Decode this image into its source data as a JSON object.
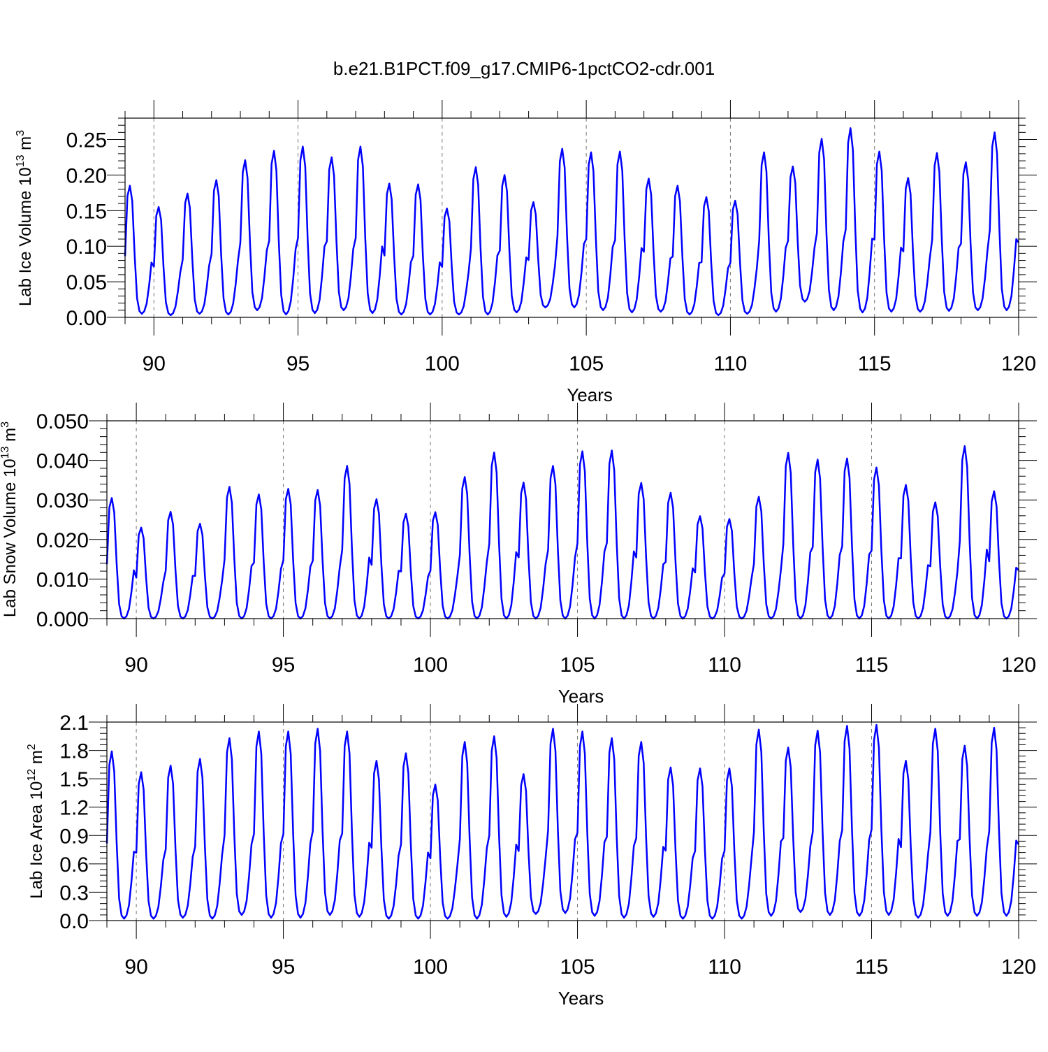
{
  "figure": {
    "title": "b.e21.B1PCT.f09_g17.CMIP6-1pctCO2-cdr.001",
    "colors": {
      "series": "#0000ff",
      "axis": "#000000",
      "grid": "#777777"
    }
  },
  "chart_data": [
    {
      "type": "line",
      "title": "b.e21.B1PCT.f09_g17.CMIP6-1pctCO2-cdr.001",
      "xlabel": "Years",
      "ylabel": "Lab Ice Volume 10",
      "ylabel_exponent": "13",
      "ylabel_unit": "m",
      "ylabel_unit_exponent": "3",
      "xlim": [
        89.0,
        120.0
      ],
      "ylim": [
        0,
        0.28
      ],
      "xticks": [
        90,
        95,
        100,
        105,
        110,
        115,
        120
      ],
      "xtick_labels": [
        "90",
        "95",
        "100",
        "105",
        "110",
        "115",
        "120"
      ],
      "yticks": [
        0,
        0.05,
        0.1,
        0.15,
        0.2,
        0.25
      ],
      "ytick_labels": [
        "0.00",
        "0.05",
        "0.10",
        "0.15",
        "0.20",
        "0.25"
      ],
      "grid": "vertical dashed at major x ticks",
      "x_start": 89.0,
      "x_step_per_year": 12,
      "annual_peaks": [
        0.185,
        0.155,
        0.174,
        0.193,
        0.221,
        0.234,
        0.24,
        0.225,
        0.24,
        0.188,
        0.187,
        0.153,
        0.211,
        0.2,
        0.162,
        0.237,
        0.232,
        0.233,
        0.195,
        0.185,
        0.169,
        0.164,
        0.232,
        0.212,
        0.251,
        0.266,
        0.233,
        0.196,
        0.231,
        0.218,
        0.26
      ],
      "annual_minima": [
        0.005,
        0.003,
        0.005,
        0.004,
        0.01,
        0.004,
        0.006,
        0.01,
        0.006,
        0.004,
        0.004,
        0.004,
        0.004,
        0.007,
        0.014,
        0.014,
        0.01,
        0.007,
        0.008,
        0.004,
        0.003,
        0.005,
        0.008,
        0.022,
        0.01,
        0.007,
        0.008,
        0.008,
        0.009,
        0.01,
        0.01
      ]
    },
    {
      "type": "line",
      "xlabel": "Years",
      "ylabel": "Lab Snow Volume 10",
      "ylabel_exponent": "13",
      "ylabel_unit": "m",
      "ylabel_unit_exponent": "3",
      "xlim": [
        89.0,
        120.0
      ],
      "ylim": [
        0,
        0.05
      ],
      "xticks": [
        90,
        95,
        100,
        105,
        110,
        115,
        120
      ],
      "xtick_labels": [
        "90",
        "95",
        "100",
        "105",
        "110",
        "115",
        "120"
      ],
      "yticks": [
        0,
        0.01,
        0.02,
        0.03,
        0.04,
        0.05
      ],
      "ytick_labels": [
        "0.000",
        "0.010",
        "0.020",
        "0.030",
        "0.040",
        "0.050"
      ],
      "grid": "vertical dashed at major x ticks",
      "x_start": 89.0,
      "x_step_per_year": 12,
      "annual_peaks": [
        0.0305,
        0.023,
        0.027,
        0.024,
        0.0333,
        0.0314,
        0.0328,
        0.0325,
        0.0386,
        0.0302,
        0.0265,
        0.0269,
        0.0358,
        0.042,
        0.0344,
        0.0386,
        0.0423,
        0.0425,
        0.0343,
        0.0318,
        0.0259,
        0.0252,
        0.0308,
        0.0419,
        0.0402,
        0.0405,
        0.0382,
        0.0338,
        0.0294,
        0.0436,
        0.0322
      ],
      "annual_minima": [
        0.0,
        0.0,
        0.0,
        0.0,
        0.0,
        0.0,
        0.0,
        0.0,
        0.0,
        0.0,
        0.0,
        0.0,
        0.0,
        0.0,
        0.0,
        0.0,
        0.0,
        0.0,
        0.0,
        0.0,
        0.0,
        0.0,
        0.0,
        0.0,
        0.0,
        0.0,
        0.0,
        0.0,
        0.0,
        0.0,
        0.0
      ]
    },
    {
      "type": "line",
      "xlabel": "Years",
      "ylabel": "Lab Ice Area 10",
      "ylabel_exponent": "12",
      "ylabel_unit": "m",
      "ylabel_unit_exponent": "2",
      "xlim": [
        89.0,
        120.0
      ],
      "ylim": [
        0,
        2.1
      ],
      "xticks": [
        90,
        95,
        100,
        105,
        110,
        115,
        120
      ],
      "xtick_labels": [
        "90",
        "95",
        "100",
        "105",
        "110",
        "115",
        "120"
      ],
      "yticks": [
        0,
        0.3,
        0.6,
        0.9,
        1.2,
        1.5,
        1.8,
        2.1
      ],
      "ytick_labels": [
        "0.0",
        "0.3",
        "0.6",
        "0.9",
        "1.2",
        "1.5",
        "1.8",
        "2.1"
      ],
      "grid": "vertical dashed at major x ticks",
      "x_start": 89.0,
      "x_step_per_year": 12,
      "annual_peaks": [
        1.79,
        1.57,
        1.64,
        1.71,
        1.93,
        2.0,
        2.0,
        2.03,
        2.0,
        1.69,
        1.77,
        1.44,
        1.89,
        1.95,
        1.55,
        2.03,
        2.0,
        1.93,
        1.89,
        1.62,
        1.61,
        1.61,
        2.02,
        1.83,
        2.01,
        2.06,
        2.07,
        1.69,
        2.03,
        1.85,
        2.04
      ],
      "annual_minima": [
        0.02,
        0.02,
        0.03,
        0.02,
        0.06,
        0.03,
        0.03,
        0.06,
        0.04,
        0.02,
        0.02,
        0.02,
        0.02,
        0.04,
        0.07,
        0.08,
        0.05,
        0.03,
        0.04,
        0.02,
        0.02,
        0.02,
        0.05,
        0.09,
        0.06,
        0.05,
        0.06,
        0.03,
        0.05,
        0.05,
        0.05
      ]
    }
  ]
}
